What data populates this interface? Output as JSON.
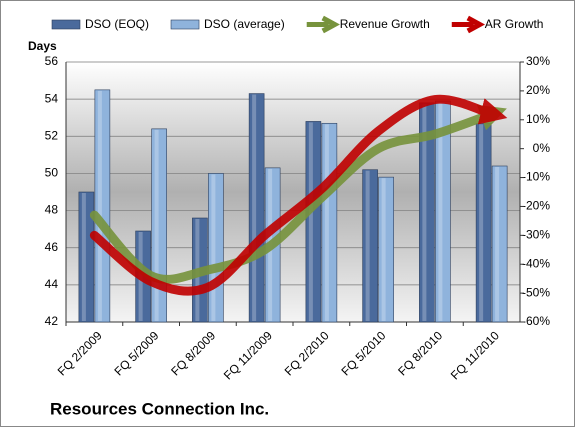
{
  "chart_data": {
    "type": "bar-line",
    "title": "Resources Connection Inc.",
    "y_label": "Days",
    "categories": [
      "FQ 2/2009",
      "FQ 5/2009",
      "FQ 8/2009",
      "FQ 11/2009",
      "FQ 2/2010",
      "FQ 5/2010",
      "FQ 8/2010",
      "FQ 11/2010"
    ],
    "series": [
      {
        "name": "DSO (EOQ)",
        "color": "#4a6a9c",
        "kind": "bar",
        "values": [
          49.0,
          46.9,
          47.6,
          54.3,
          52.8,
          50.2,
          53.8,
          52.7
        ]
      },
      {
        "name": "DSO (average)",
        "color": "#8fb3dc",
        "kind": "bar",
        "values": [
          54.5,
          52.4,
          50.0,
          50.3,
          52.7,
          49.8,
          53.9,
          50.4
        ]
      },
      {
        "name": "Revenue Growth",
        "color": "#77933c",
        "kind": "line",
        "axis": "y2",
        "values": [
          -23,
          -44,
          -42,
          -35,
          -17,
          0,
          5,
          12
        ]
      },
      {
        "name": "AR Growth",
        "color": "#c00000",
        "kind": "line",
        "axis": "y2",
        "values": [
          -30,
          -46,
          -48,
          -30,
          -14,
          6,
          17,
          12
        ]
      }
    ],
    "ylim": [
      42,
      56
    ],
    "yticks": [
      42,
      44,
      46,
      48,
      50,
      52,
      54,
      56
    ],
    "y2lim": [
      -60,
      30
    ],
    "y2ticks": [
      {
        "value": -60,
        "label": "-60%"
      },
      {
        "value": -50,
        "label": "-50%"
      },
      {
        "value": -40,
        "label": "-40%"
      },
      {
        "value": -30,
        "label": "-30%"
      },
      {
        "value": -20,
        "label": "-20%"
      },
      {
        "value": -10,
        "label": "-10%"
      },
      {
        "value": 0,
        "label": "0%"
      },
      {
        "value": 10,
        "label": "10%"
      },
      {
        "value": 20,
        "label": "20%"
      },
      {
        "value": 30,
        "label": "30%"
      }
    ],
    "grid": true,
    "legend": "top"
  }
}
